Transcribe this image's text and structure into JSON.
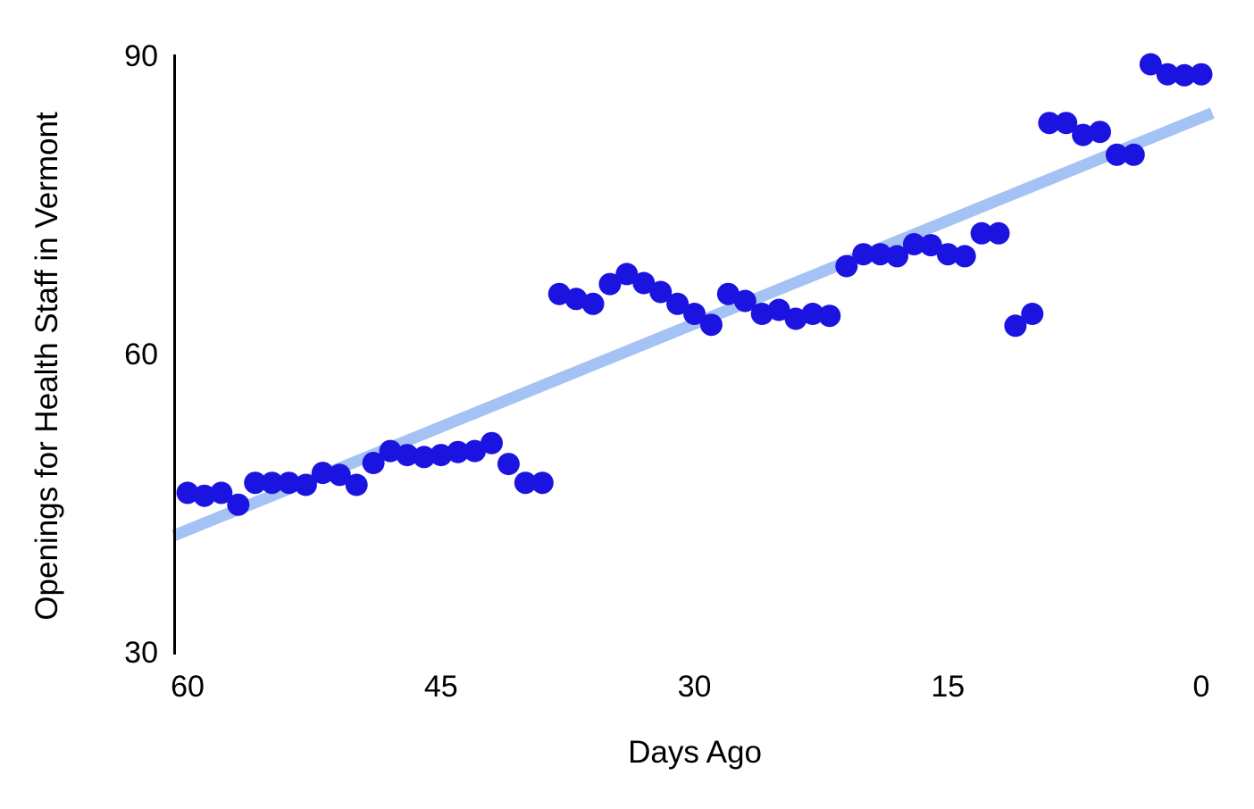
{
  "chart_data": {
    "type": "scatter",
    "title": "",
    "xlabel": "Days Ago",
    "ylabel": "Openings for Health Staff in Vermont",
    "xlim": [
      60,
      0
    ],
    "ylim": [
      30,
      90
    ],
    "x_axis_reversed": true,
    "grid": false,
    "legend": "none",
    "x_ticks": [
      60,
      45,
      30,
      15,
      0
    ],
    "y_ticks": [
      30,
      60,
      90
    ],
    "series": [
      {
        "name": "daily-openings",
        "type": "scatter",
        "x": [
          60,
          59,
          58,
          57,
          56,
          55,
          54,
          53,
          52,
          51,
          50,
          49,
          48,
          47,
          46,
          45,
          44,
          43,
          42,
          41,
          40,
          39,
          38,
          37,
          36,
          35,
          34,
          33,
          32,
          31,
          30,
          29,
          28,
          27,
          26,
          25,
          24,
          23,
          22,
          21,
          20,
          19,
          18,
          17,
          16,
          15,
          14,
          13,
          12,
          11,
          10,
          9,
          8,
          7,
          6,
          5,
          4,
          3,
          2,
          1,
          0
        ],
        "y": [
          46,
          45.7,
          46,
          44.8,
          47,
          47,
          47,
          46.8,
          48,
          47.8,
          46.8,
          49,
          50.2,
          49.8,
          49.6,
          49.8,
          50.1,
          50.2,
          51,
          48.9,
          47,
          47,
          66,
          65.5,
          65,
          67,
          68,
          67.1,
          66.2,
          65,
          64,
          62.9,
          66,
          65.3,
          64,
          64.4,
          63.5,
          64,
          63.8,
          68.8,
          70,
          70,
          69.8,
          71,
          70.9,
          70,
          69.8,
          72.1,
          72.1,
          62.8,
          64,
          83.2,
          83.2,
          82,
          82.3,
          80,
          80,
          89.1,
          88.1,
          88,
          88.1
        ]
      },
      {
        "name": "trend-line",
        "type": "line",
        "x": [
          60.8,
          -0.65
        ],
        "y": [
          41.7,
          84.2
        ]
      }
    ],
    "colors": {
      "points": "#1b13e0",
      "trend": "#a4c2f4",
      "axis": "#000000"
    }
  }
}
